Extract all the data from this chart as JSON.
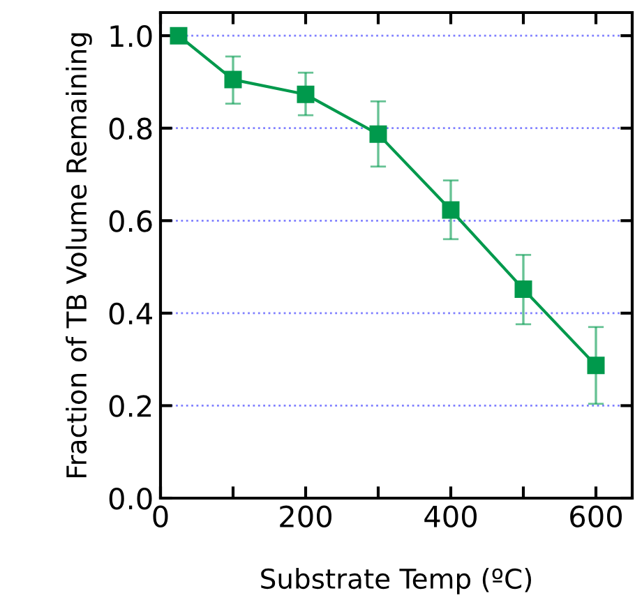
{
  "chart_data": {
    "type": "line",
    "xlabel": "Substrate Temp (ºC)",
    "ylabel": "Fraction of TB Volume Remaining",
    "x": [
      25,
      100,
      200,
      300,
      400,
      500,
      600
    ],
    "series": [
      {
        "color": "#00994c",
        "values": [
          1.0,
          0.905,
          0.873,
          0.787,
          0.623,
          0.452,
          0.287
        ],
        "errors": [
          null,
          [
            0.853,
            0.955
          ],
          [
            0.828,
            0.92
          ],
          [
            0.717,
            0.858
          ],
          [
            0.56,
            0.687
          ],
          [
            0.376,
            0.526
          ],
          [
            0.204,
            0.37
          ]
        ]
      }
    ],
    "xlim": [
      0,
      650
    ],
    "xticks": [
      0,
      {
        "value": 100,
        "label": null
      },
      200,
      {
        "value": 300,
        "label": null
      },
      400,
      {
        "value": 500,
        "label": null
      },
      600
    ],
    "ylim": [
      0,
      1.05
    ],
    "yticks": [
      {
        "value": 0,
        "label": "0.0"
      },
      0.2,
      0.4,
      0.6,
      0.8,
      {
        "value": 1,
        "label": "1.0"
      }
    ],
    "grid": "y",
    "marker": "square",
    "line_style": "solid",
    "legend": false
  }
}
